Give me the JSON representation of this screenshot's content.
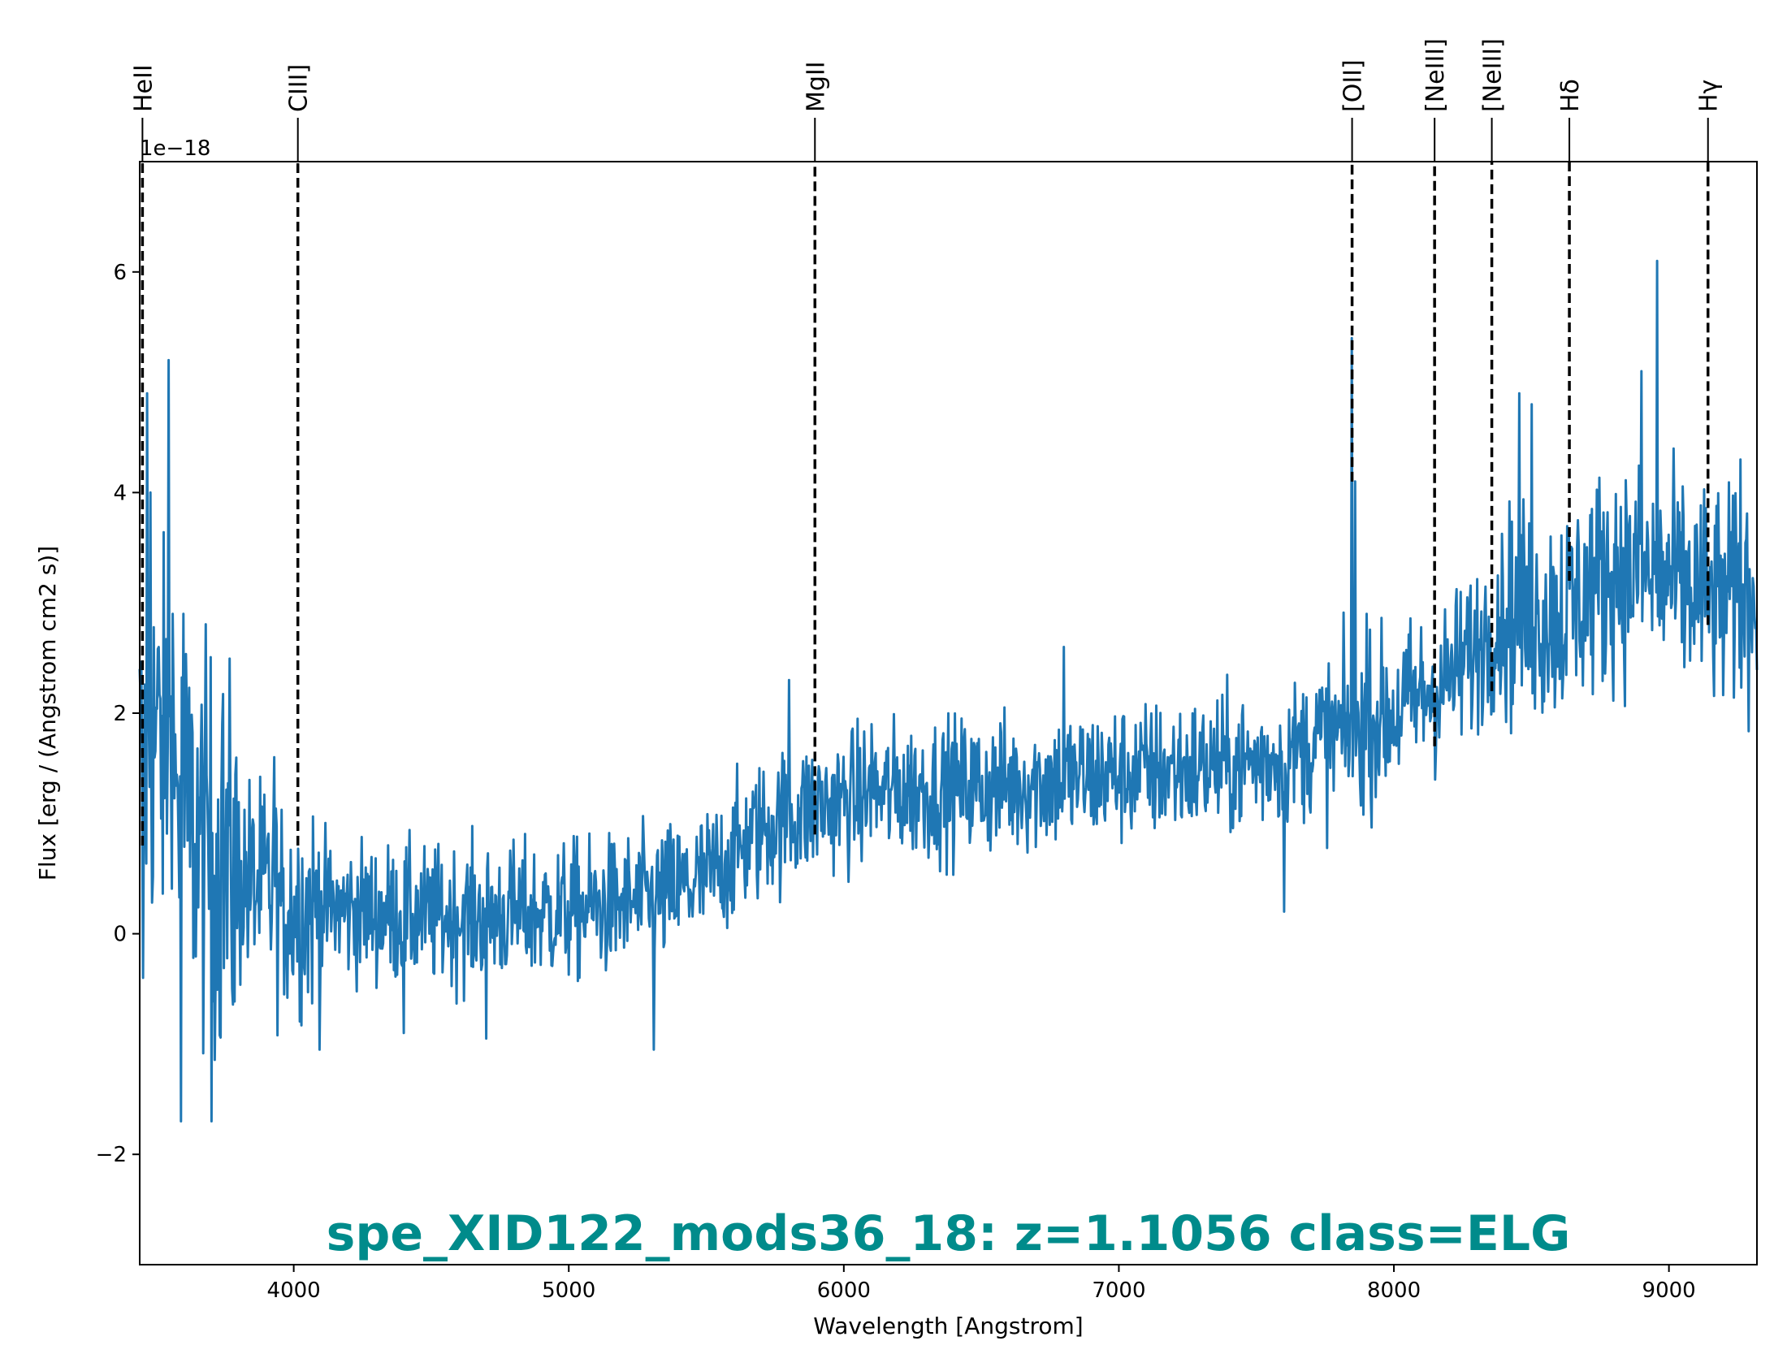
{
  "chart_data": {
    "type": "line",
    "title": "spe_XID122_mods36_18: z=1.1056 class=ELG",
    "title_color": "#008B8B",
    "xlabel": "Wavelength [Angstrom]",
    "ylabel": "Flux [erg / (Angstrom cm2 s)]",
    "y_offset_text": "1e−18",
    "xlim": [
      3440,
      9320
    ],
    "ylim": [
      -3.0,
      7.0
    ],
    "x_ticks": [
      4000,
      5000,
      6000,
      7000,
      8000,
      9000
    ],
    "y_ticks": [
      -2,
      0,
      2,
      4,
      6
    ],
    "y_tick_labels": [
      "−2",
      "0",
      "2",
      "4",
      "6"
    ],
    "series_color": "#1f77b4",
    "grid": false,
    "spectral_lines": [
      {
        "label": "HeII",
        "x": 3450,
        "ymin": 0.8
      },
      {
        "label": "CIII]",
        "x": 4015,
        "ymin": 0.8
      },
      {
        "label": "MgII",
        "x": 5895,
        "ymin": 0.9
      },
      {
        "label": "[OII]",
        "x": 7848,
        "ymin": 4.1
      },
      {
        "label": "[NeIII]",
        "x": 8148,
        "ymin": 1.7
      },
      {
        "label": "[NeIII]",
        "x": 8356,
        "ymin": 2.2
      },
      {
        "label": "Hδ",
        "x": 8638,
        "ymin": 3.2
      },
      {
        "label": "Hγ",
        "x": 9142,
        "ymin": 2.8
      }
    ],
    "continuum_anchors": {
      "x": [
        3440,
        3500,
        3600,
        3700,
        3800,
        4000,
        4500,
        5000,
        5300,
        5500,
        5700,
        5900,
        6200,
        6600,
        7000,
        7500,
        7800,
        8000,
        8200,
        8400,
        8600,
        8800,
        9000,
        9200,
        9320
      ],
      "y": [
        1.5,
        1.8,
        1.1,
        0.7,
        0.5,
        0.25,
        0.15,
        0.2,
        0.3,
        0.5,
        0.95,
        1.15,
        1.3,
        1.35,
        1.45,
        1.55,
        1.8,
        2.0,
        2.3,
        2.9,
        2.9,
        3.3,
        3.2,
        3.0,
        3.1
      ]
    },
    "features": {
      "x": [
        3452,
        3468,
        3480,
        3545,
        3560,
        3590,
        3600,
        3700,
        3740,
        3930,
        3960,
        4400,
        4700,
        5310,
        5800,
        6100,
        6800,
        7600,
        7848,
        7858,
        7900,
        8455,
        8500,
        8900,
        8958,
        9260
      ],
      "y": [
        -0.4,
        4.9,
        4.0,
        5.2,
        2.9,
        -1.7,
        2.9,
        -1.7,
        1.9,
        1.6,
        0.3,
        -0.9,
        -0.95,
        -1.05,
        2.3,
        1.9,
        2.6,
        0.2,
        5.4,
        4.1,
        2.9,
        4.9,
        4.8,
        5.1,
        6.1,
        4.3
      ]
    }
  }
}
